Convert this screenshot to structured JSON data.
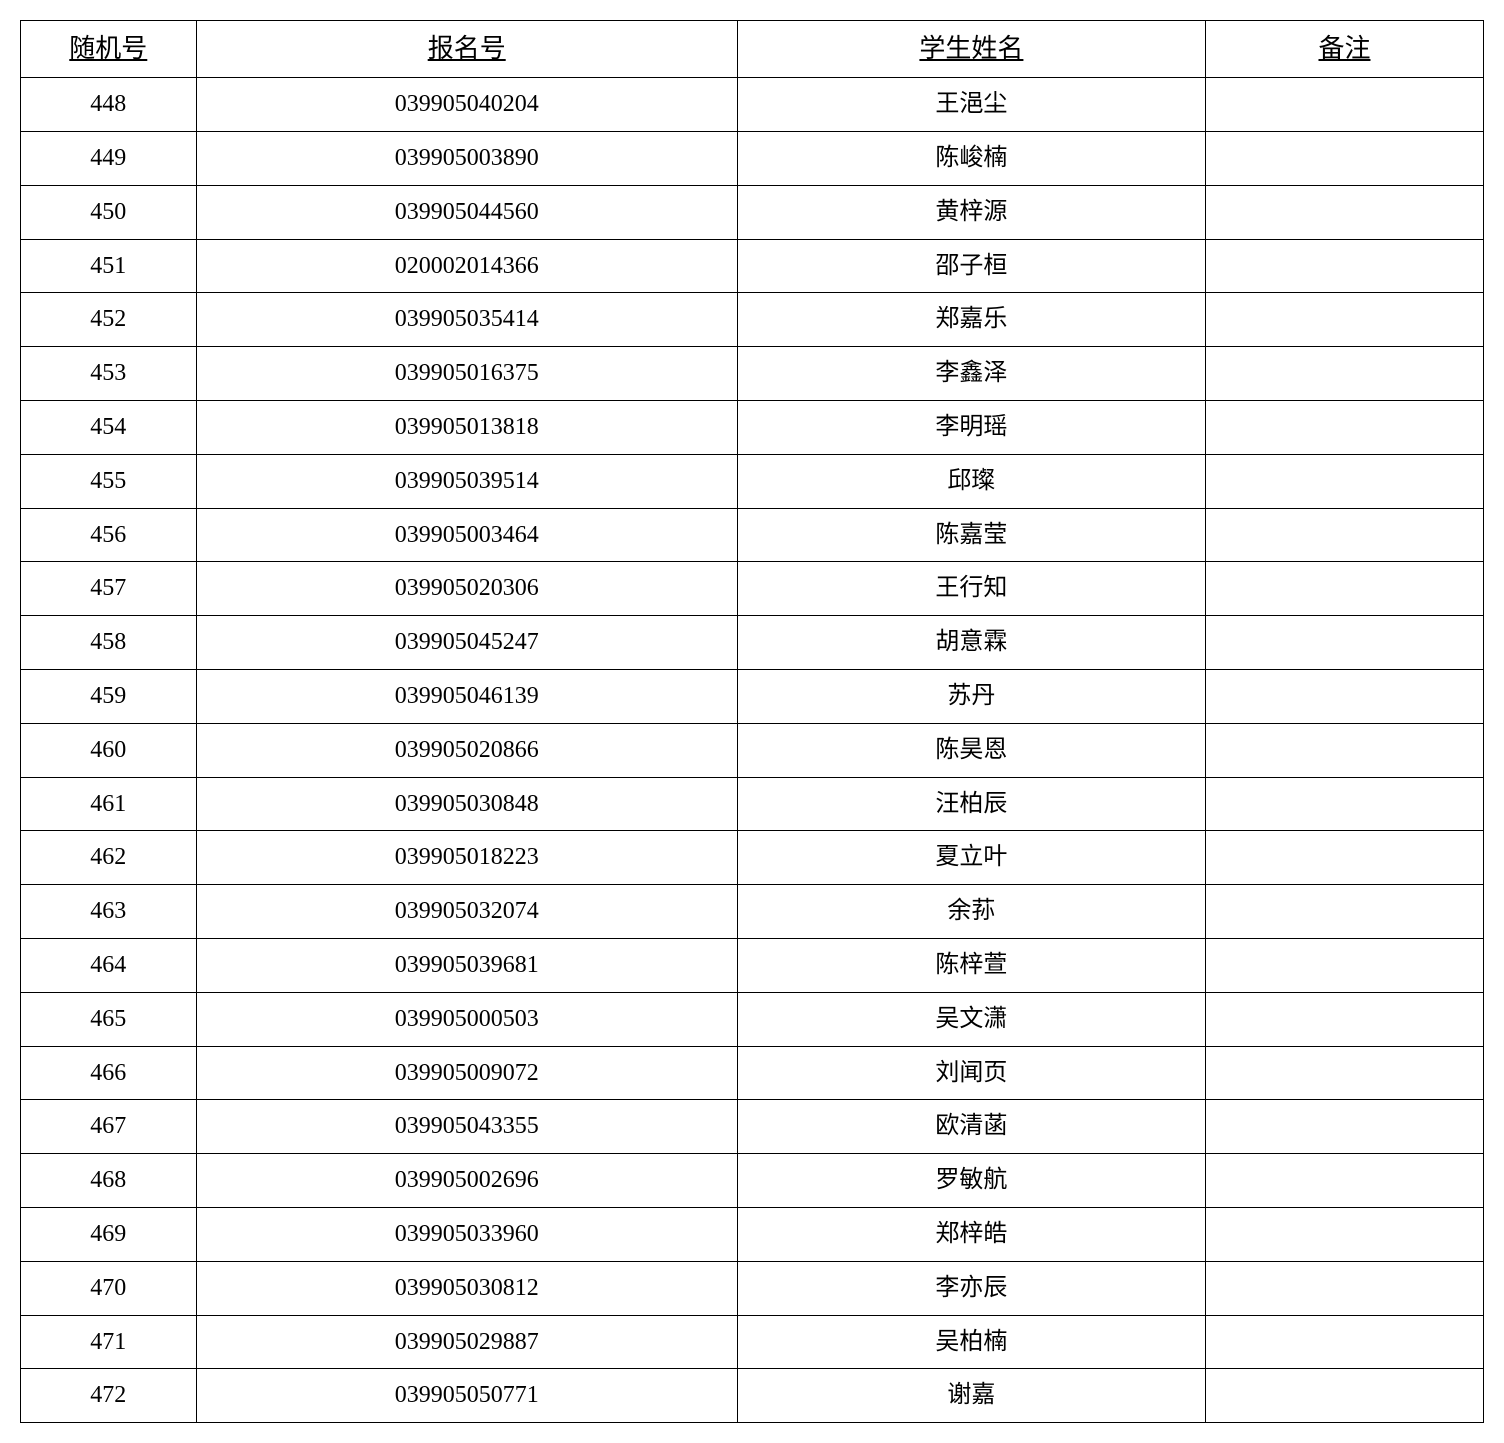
{
  "table": {
    "type": "table",
    "columns": [
      "随机号",
      "报名号",
      "学生姓名",
      "备注"
    ],
    "column_widths_pct": [
      12,
      37,
      32,
      19
    ],
    "header_fontsize": 26,
    "cell_fontsize": 24,
    "border_color": "#000000",
    "background_color": "#ffffff",
    "text_color": "#000000",
    "text_align": "center",
    "header_underline": true,
    "rows": [
      [
        "448",
        "039905040204",
        "王浥尘",
        ""
      ],
      [
        "449",
        "039905003890",
        "陈峻楠",
        ""
      ],
      [
        "450",
        "039905044560",
        "黄梓源",
        ""
      ],
      [
        "451",
        "020002014366",
        "邵子桓",
        ""
      ],
      [
        "452",
        "039905035414",
        "郑嘉乐",
        ""
      ],
      [
        "453",
        "039905016375",
        "李鑫泽",
        ""
      ],
      [
        "454",
        "039905013818",
        "李明瑶",
        ""
      ],
      [
        "455",
        "039905039514",
        "邱璨",
        ""
      ],
      [
        "456",
        "039905003464",
        "陈嘉莹",
        ""
      ],
      [
        "457",
        "039905020306",
        "王行知",
        ""
      ],
      [
        "458",
        "039905045247",
        "胡意霖",
        ""
      ],
      [
        "459",
        "039905046139",
        "苏丹",
        ""
      ],
      [
        "460",
        "039905020866",
        "陈昊恩",
        ""
      ],
      [
        "461",
        "039905030848",
        "汪柏辰",
        ""
      ],
      [
        "462",
        "039905018223",
        "夏立叶",
        ""
      ],
      [
        "463",
        "039905032074",
        "余荪",
        ""
      ],
      [
        "464",
        "039905039681",
        "陈梓萱",
        ""
      ],
      [
        "465",
        "039905000503",
        "吴文潇",
        ""
      ],
      [
        "466",
        "039905009072",
        "刘闻页",
        ""
      ],
      [
        "467",
        "039905043355",
        "欧清菡",
        ""
      ],
      [
        "468",
        "039905002696",
        "罗敏航",
        ""
      ],
      [
        "469",
        "039905033960",
        "郑梓皓",
        ""
      ],
      [
        "470",
        "039905030812",
        "李亦辰",
        ""
      ],
      [
        "471",
        "039905029887",
        "吴柏楠",
        ""
      ],
      [
        "472",
        "039905050771",
        "谢嘉",
        ""
      ]
    ]
  }
}
